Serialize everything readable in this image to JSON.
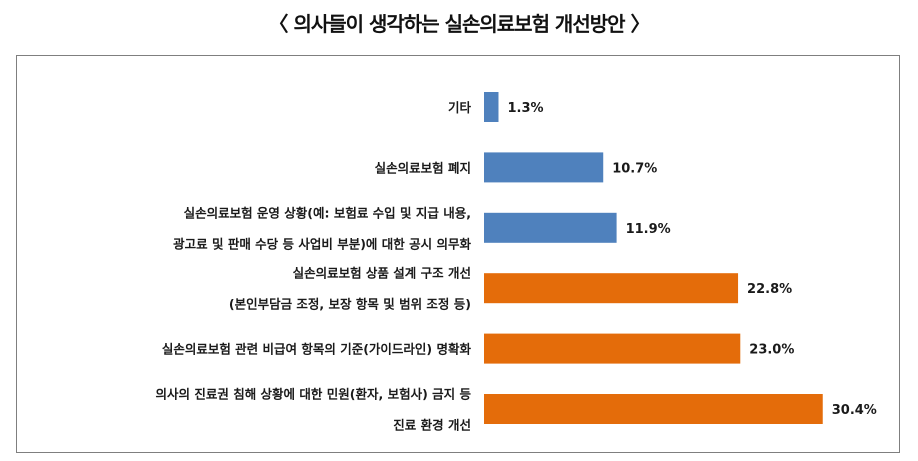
{
  "chart_data": {
    "type": "bar",
    "orientation": "horizontal",
    "title": "〈 의사들이 생각하는 실손의료보험 개선방안 〉",
    "xlabel": "",
    "ylabel": "",
    "xlim": [
      0,
      35
    ],
    "grid": false,
    "legend": "none",
    "value_suffix": "%",
    "categories": [
      [
        "기타"
      ],
      [
        "실손의료보험 폐지"
      ],
      [
        "실손의료보험 운영 상황(예: 보험료 수입 및 지급 내용,",
        "광고료 및 판매 수당 등 사업비 부분)에 대한 공시 의무화"
      ],
      [
        "실손의료보험 상품 설계 구조 개선",
        "(본인부담금 조정, 보장 항목 및 범위 조정 등)"
      ],
      [
        "실손의료보험 관련 비급여 항목의 기준(가이드라인) 명확화"
      ],
      [
        "의사의 진료권 침해 상황에 대한 민원(환자, 보험사) 금지 등",
        "진료 환경 개선"
      ]
    ],
    "values": [
      1.3,
      10.7,
      11.9,
      22.8,
      23.0,
      30.4
    ],
    "value_labels": [
      "1.3%",
      "10.7%",
      "11.9%",
      "22.8%",
      "23.0%",
      "30.4%"
    ],
    "bar_colors": [
      "#4f81bd",
      "#4f81bd",
      "#4f81bd",
      "#e46c0a",
      "#e46c0a",
      "#e46c0a"
    ]
  }
}
